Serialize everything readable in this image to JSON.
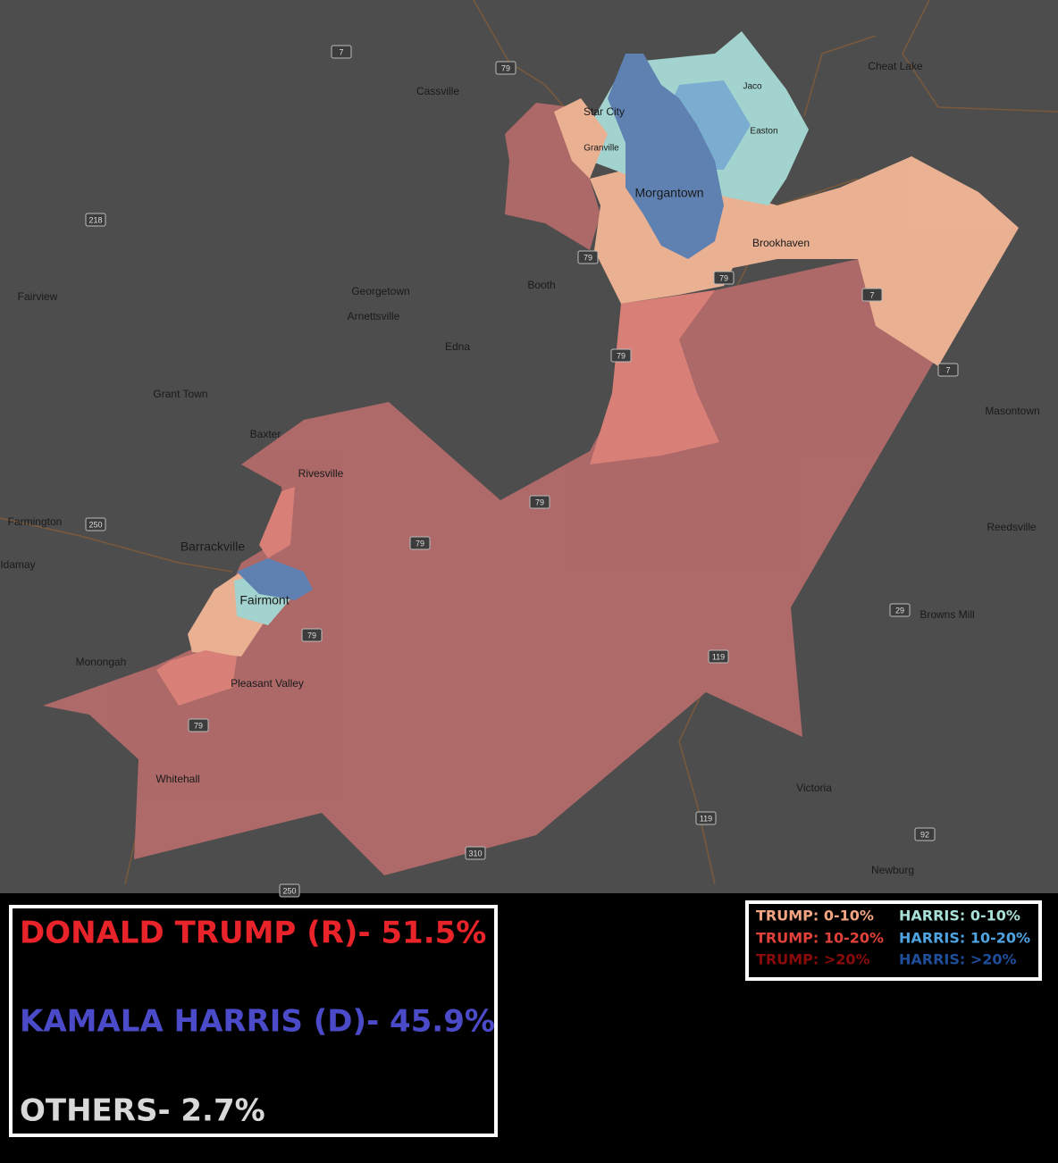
{
  "map": {
    "places": [
      "Cassville",
      "Cheat Lake",
      "Star City",
      "Jaco",
      "Easton",
      "Granville",
      "Morgantown",
      "Brookhaven",
      "Fairview",
      "Georgetown",
      "Booth",
      "Arnettsville",
      "Edna",
      "Grant Town",
      "Masontown",
      "Baxter",
      "Rivesville",
      "Farmington",
      "Reedsville",
      "Barrackville",
      "Idamay",
      "Fairmont",
      "Browns Mill",
      "Monongah",
      "Pleasant Valley",
      "Whitehall",
      "Victoria",
      "Newburg"
    ],
    "road_shields": [
      "7",
      "79",
      "218",
      "79",
      "79",
      "7",
      "7",
      "79",
      "250",
      "79",
      "29",
      "79",
      "119",
      "79",
      "79",
      "119",
      "310",
      "92",
      "250"
    ]
  },
  "results": [
    "DONALD TRUMP (R)- 51.5%",
    "KAMALA HARRIS (D)- 45.9%",
    "OTHERS- 2.7%"
  ],
  "legend": [
    "TRUMP: 0-10%",
    "HARRIS: 0-10%",
    "TRUMP: 10-20%",
    "HARRIS: 10-20%",
    "TRUMP: >20%",
    "HARRIS: >20%"
  ]
}
